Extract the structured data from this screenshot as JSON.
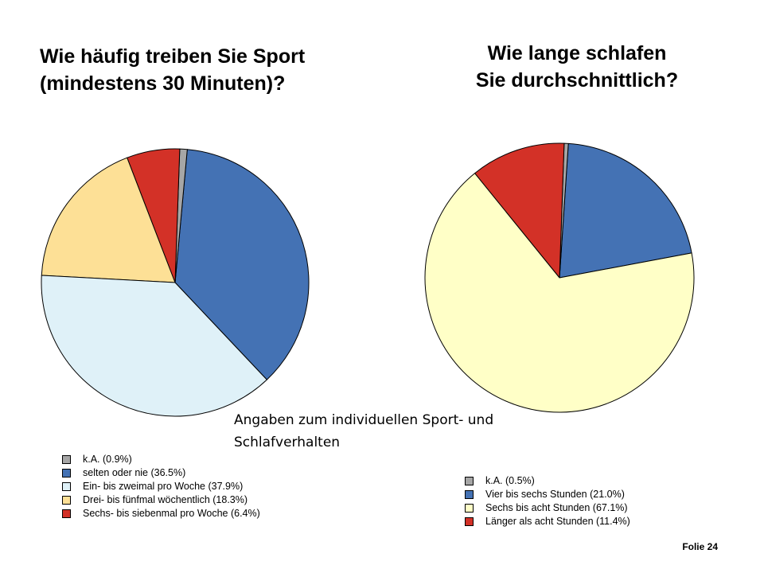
{
  "slide": {
    "caption": "Angaben zum individuellen Sport- und Schlafverhalten",
    "page_label": "Folie 24"
  },
  "chart_data": [
    {
      "type": "pie",
      "title_lines": [
        "Wie häufig treiben Sie Sport",
        "(mindestens 30 Minuten)?"
      ],
      "legend_position": "bottom-left",
      "slices": [
        {
          "label": "k.A. (0.9%)",
          "value": 0.9,
          "color": "#a6a6a6"
        },
        {
          "label": "selten oder nie (36.5%)",
          "value": 36.5,
          "color": "#4472b4"
        },
        {
          "label": "Ein- bis zweimal pro Woche (37.9%)",
          "value": 37.9,
          "color": "#dff1f8"
        },
        {
          "label": "Drei- bis fünfmal wöchentlich (18.3%)",
          "value": 18.3,
          "color": "#fde096"
        },
        {
          "label": "Sechs- bis siebenmal pro Woche (6.4%)",
          "value": 6.4,
          "color": "#d33127"
        }
      ],
      "draw_order": [
        1,
        0,
        4,
        3,
        2
      ]
    },
    {
      "type": "pie",
      "title_lines": [
        "Wie lange schlafen",
        "Sie durchschnittlich?"
      ],
      "legend_position": "bottom-right",
      "slices": [
        {
          "label": "k.A. (0.5%)",
          "value": 0.5,
          "color": "#a6a6a6"
        },
        {
          "label": "Vier  bis sechs Stunden (21.0%)",
          "value": 21.0,
          "color": "#4472b4"
        },
        {
          "label": "Sechs bis acht Stunden (67.1%)",
          "value": 67.1,
          "color": "#ffffc7"
        },
        {
          "label": "Länger als acht Stunden (11.4%)",
          "value": 11.4,
          "color": "#d33127"
        }
      ],
      "draw_order": [
        1,
        0,
        3,
        2
      ]
    }
  ]
}
